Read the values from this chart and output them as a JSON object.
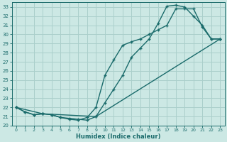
{
  "xlabel": "Humidex (Indice chaleur)",
  "bg_color": "#cce8e4",
  "grid_color": "#aacfcb",
  "line_color": "#1a6b6b",
  "xlim": [
    -0.5,
    23.5
  ],
  "ylim": [
    20.0,
    33.5
  ],
  "xticks": [
    0,
    1,
    2,
    3,
    4,
    5,
    6,
    7,
    8,
    9,
    10,
    11,
    12,
    13,
    14,
    15,
    16,
    17,
    18,
    19,
    20,
    21,
    22,
    23
  ],
  "yticks": [
    20,
    21,
    22,
    23,
    24,
    25,
    26,
    27,
    28,
    29,
    30,
    31,
    32,
    33
  ],
  "line1_x": [
    0,
    1,
    2,
    3,
    4,
    5,
    6,
    7,
    8,
    9,
    10,
    11,
    12,
    13,
    14,
    15,
    16,
    17,
    18,
    19,
    20,
    21,
    22,
    23
  ],
  "line1_y": [
    22.0,
    21.5,
    21.2,
    21.3,
    21.2,
    20.9,
    20.8,
    20.7,
    20.6,
    21.0,
    22.5,
    24.0,
    25.5,
    27.5,
    28.5,
    29.5,
    31.2,
    33.1,
    33.2,
    33.0,
    32.0,
    31.0,
    29.5,
    29.5
  ],
  "line2_x": [
    0,
    1,
    2,
    3,
    4,
    5,
    6,
    7,
    8,
    9,
    10,
    11,
    12,
    13,
    14,
    15,
    16,
    17,
    18,
    19,
    20,
    21,
    22,
    23
  ],
  "line2_y": [
    22.0,
    21.5,
    21.2,
    21.3,
    21.2,
    20.9,
    20.7,
    20.6,
    20.9,
    22.0,
    25.5,
    27.2,
    28.8,
    29.2,
    29.5,
    30.0,
    30.5,
    31.0,
    32.8,
    32.8,
    32.8,
    30.8,
    29.5,
    29.5
  ],
  "line3_x": [
    0,
    3,
    9,
    23
  ],
  "line3_y": [
    22.0,
    21.3,
    21.0,
    29.5
  ]
}
